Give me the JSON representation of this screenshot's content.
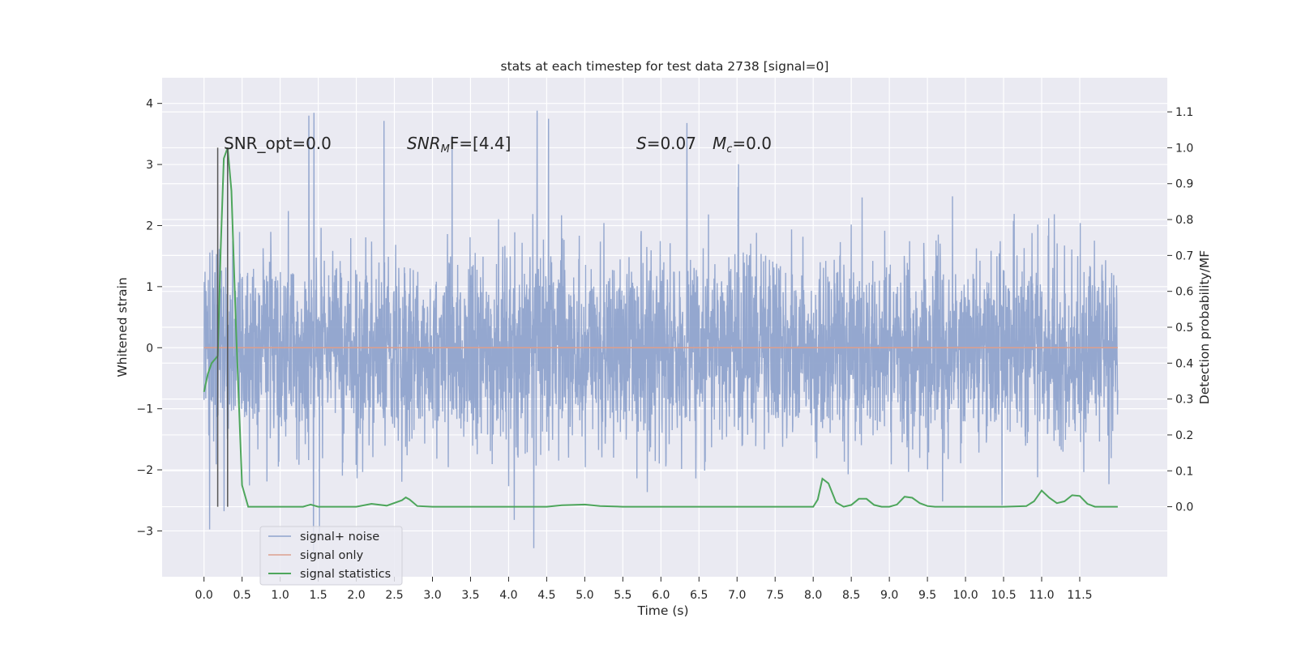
{
  "chart_data": {
    "type": "line",
    "title": "stats at each timestep for test data 2738 [signal=0]",
    "xlabel": "Time (s)",
    "ylabel": "Whitened strain",
    "ylabel_right": "Detection probability/MF",
    "xlim": [
      -0.55,
      12.65
    ],
    "ylim": [
      -3.75,
      4.42
    ],
    "ylim_right": [
      -0.195,
      1.195
    ],
    "x_ticks": [
      "0.0",
      "0.5",
      "1.0",
      "1.5",
      "2.0",
      "2.5",
      "3.0",
      "3.5",
      "4.0",
      "4.5",
      "5.0",
      "5.5",
      "6.0",
      "6.5",
      "7.0",
      "7.5",
      "8.0",
      "8.5",
      "9.0",
      "9.5",
      "10.0",
      "10.5",
      "11.0",
      "11.5"
    ],
    "y_ticks": [
      -3,
      -2,
      -1,
      0,
      1,
      2,
      3,
      4
    ],
    "y_ticks_right": [
      "0.0",
      "0.1",
      "0.2",
      "0.3",
      "0.4",
      "0.5",
      "0.6",
      "0.7",
      "0.8",
      "0.9",
      "1.0",
      "1.1"
    ],
    "grid": true,
    "legend_placement": "lower-left",
    "annotations": {
      "snr_opt": "SNR_opt=0.0",
      "snr_mf_main": "SNR",
      "snr_mf_sub": "M",
      "snr_mf_rest": "F=[4.4]",
      "s_main": "S",
      "s_rest": "=0.07",
      "mc_main": "M",
      "mc_sub": "c",
      "mc_rest": "=0.0"
    },
    "vertical_markers_x": [
      0.18,
      0.31
    ],
    "series": [
      {
        "name": "signal+ noise",
        "color": "#8fa3cc",
        "x_range": [
          0.0,
          12.0
        ],
        "typical_range": [
          -1.4,
          1.4
        ],
        "extreme_range": [
          -3.35,
          4.1
        ]
      },
      {
        "name": "signal only",
        "color": "#dd9f8e",
        "x": [
          0.0,
          12.0
        ],
        "y": [
          0.0,
          0.0
        ]
      },
      {
        "name": "signal statistics",
        "color": "#4ea65c",
        "axis": "right",
        "x": [
          0.0,
          0.05,
          0.1,
          0.18,
          0.22,
          0.26,
          0.31,
          0.36,
          0.42,
          0.5,
          0.58,
          0.7,
          1.0,
          1.3,
          1.4,
          1.5,
          2.0,
          2.2,
          2.4,
          2.6,
          2.65,
          2.7,
          2.8,
          3.0,
          3.5,
          4.0,
          4.5,
          4.7,
          5.0,
          5.2,
          5.5,
          6.0,
          6.5,
          7.0,
          7.5,
          8.0,
          8.06,
          8.12,
          8.2,
          8.3,
          8.4,
          8.5,
          8.6,
          8.7,
          8.8,
          8.9,
          9.0,
          9.1,
          9.2,
          9.3,
          9.4,
          9.5,
          9.6,
          10.0,
          10.5,
          10.8,
          10.9,
          11.0,
          11.1,
          11.2,
          11.3,
          11.4,
          11.5,
          11.6,
          11.7,
          11.8,
          12.0
        ],
        "y": [
          0.32,
          0.37,
          0.4,
          0.42,
          0.72,
          0.97,
          1.0,
          0.88,
          0.5,
          0.06,
          0.0,
          0.0,
          0.0,
          0.0,
          0.006,
          0.0,
          0.0,
          0.008,
          0.003,
          0.018,
          0.026,
          0.02,
          0.002,
          0.0,
          0.0,
          0.0,
          0.0,
          0.004,
          0.006,
          0.002,
          0.0,
          0.0,
          0.0,
          0.0,
          0.0,
          0.0,
          0.02,
          0.078,
          0.065,
          0.012,
          0.0,
          0.005,
          0.022,
          0.022,
          0.005,
          0.0,
          0.0,
          0.006,
          0.028,
          0.025,
          0.01,
          0.002,
          0.0,
          0.0,
          0.0,
          0.002,
          0.015,
          0.045,
          0.025,
          0.01,
          0.015,
          0.032,
          0.03,
          0.008,
          0.0,
          0.0,
          0.0
        ]
      }
    ]
  },
  "colors": {
    "plot_background": "#eaeaf2",
    "grid": "#ffffff",
    "marker_line": "#555555"
  }
}
